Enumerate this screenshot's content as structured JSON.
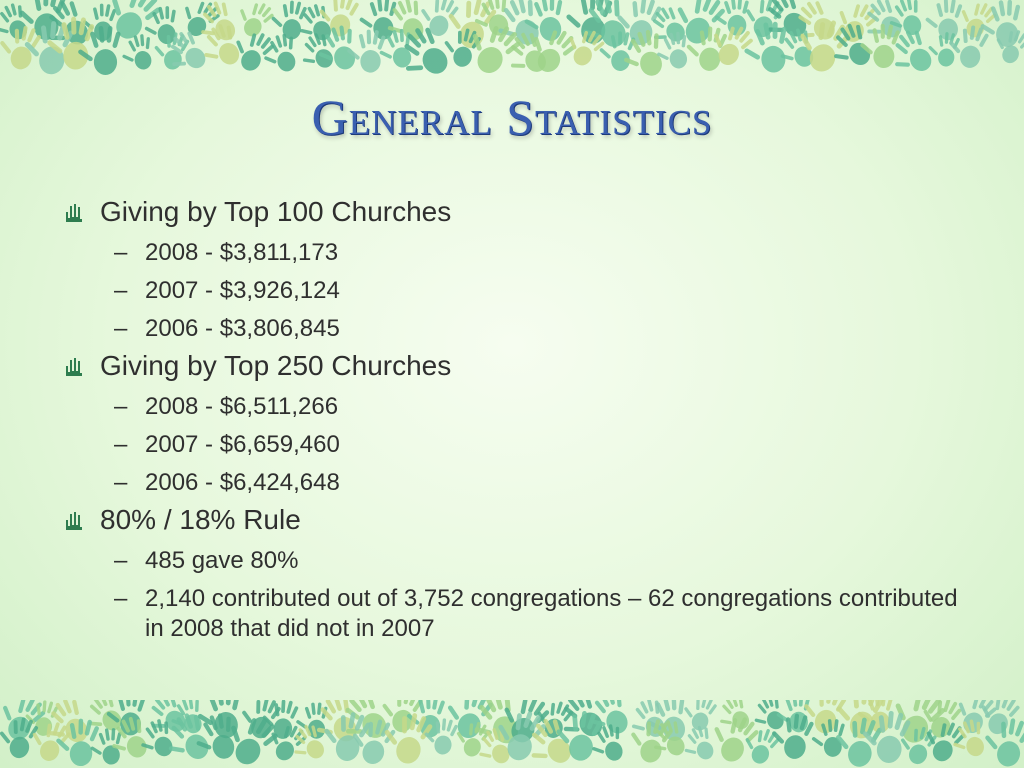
{
  "slide": {
    "title": "General Statistics",
    "sections": [
      {
        "heading": "Giving by Top 100 Churches",
        "items": [
          "2008 - $3,811,173",
          "2007 - $3,926,124",
          "2006 - $3,806,845"
        ]
      },
      {
        "heading": "Giving by Top 250 Churches",
        "items": [
          "2008 - $6,511,266",
          "2007 - $6,659,460",
          "2006 - $6,424,648"
        ]
      },
      {
        "heading": "80% / 18% Rule",
        "items": [
          "485 gave 80%",
          "2,140 contributed out of 3,752 congregations – 62 congregations contributed in 2008 that did not in 2007"
        ]
      }
    ]
  },
  "icons": {
    "bullet": "hand-icon",
    "border": "handprint-icon"
  },
  "colors": {
    "title": "#3a5fb0",
    "text": "#2f2f2f",
    "bullet": "#2e7d4f",
    "background": "#e6f8dc",
    "handprints": [
      "#6cc4a0",
      "#9fd48a",
      "#4fae8c",
      "#c6d98a",
      "#88cbb0"
    ]
  }
}
